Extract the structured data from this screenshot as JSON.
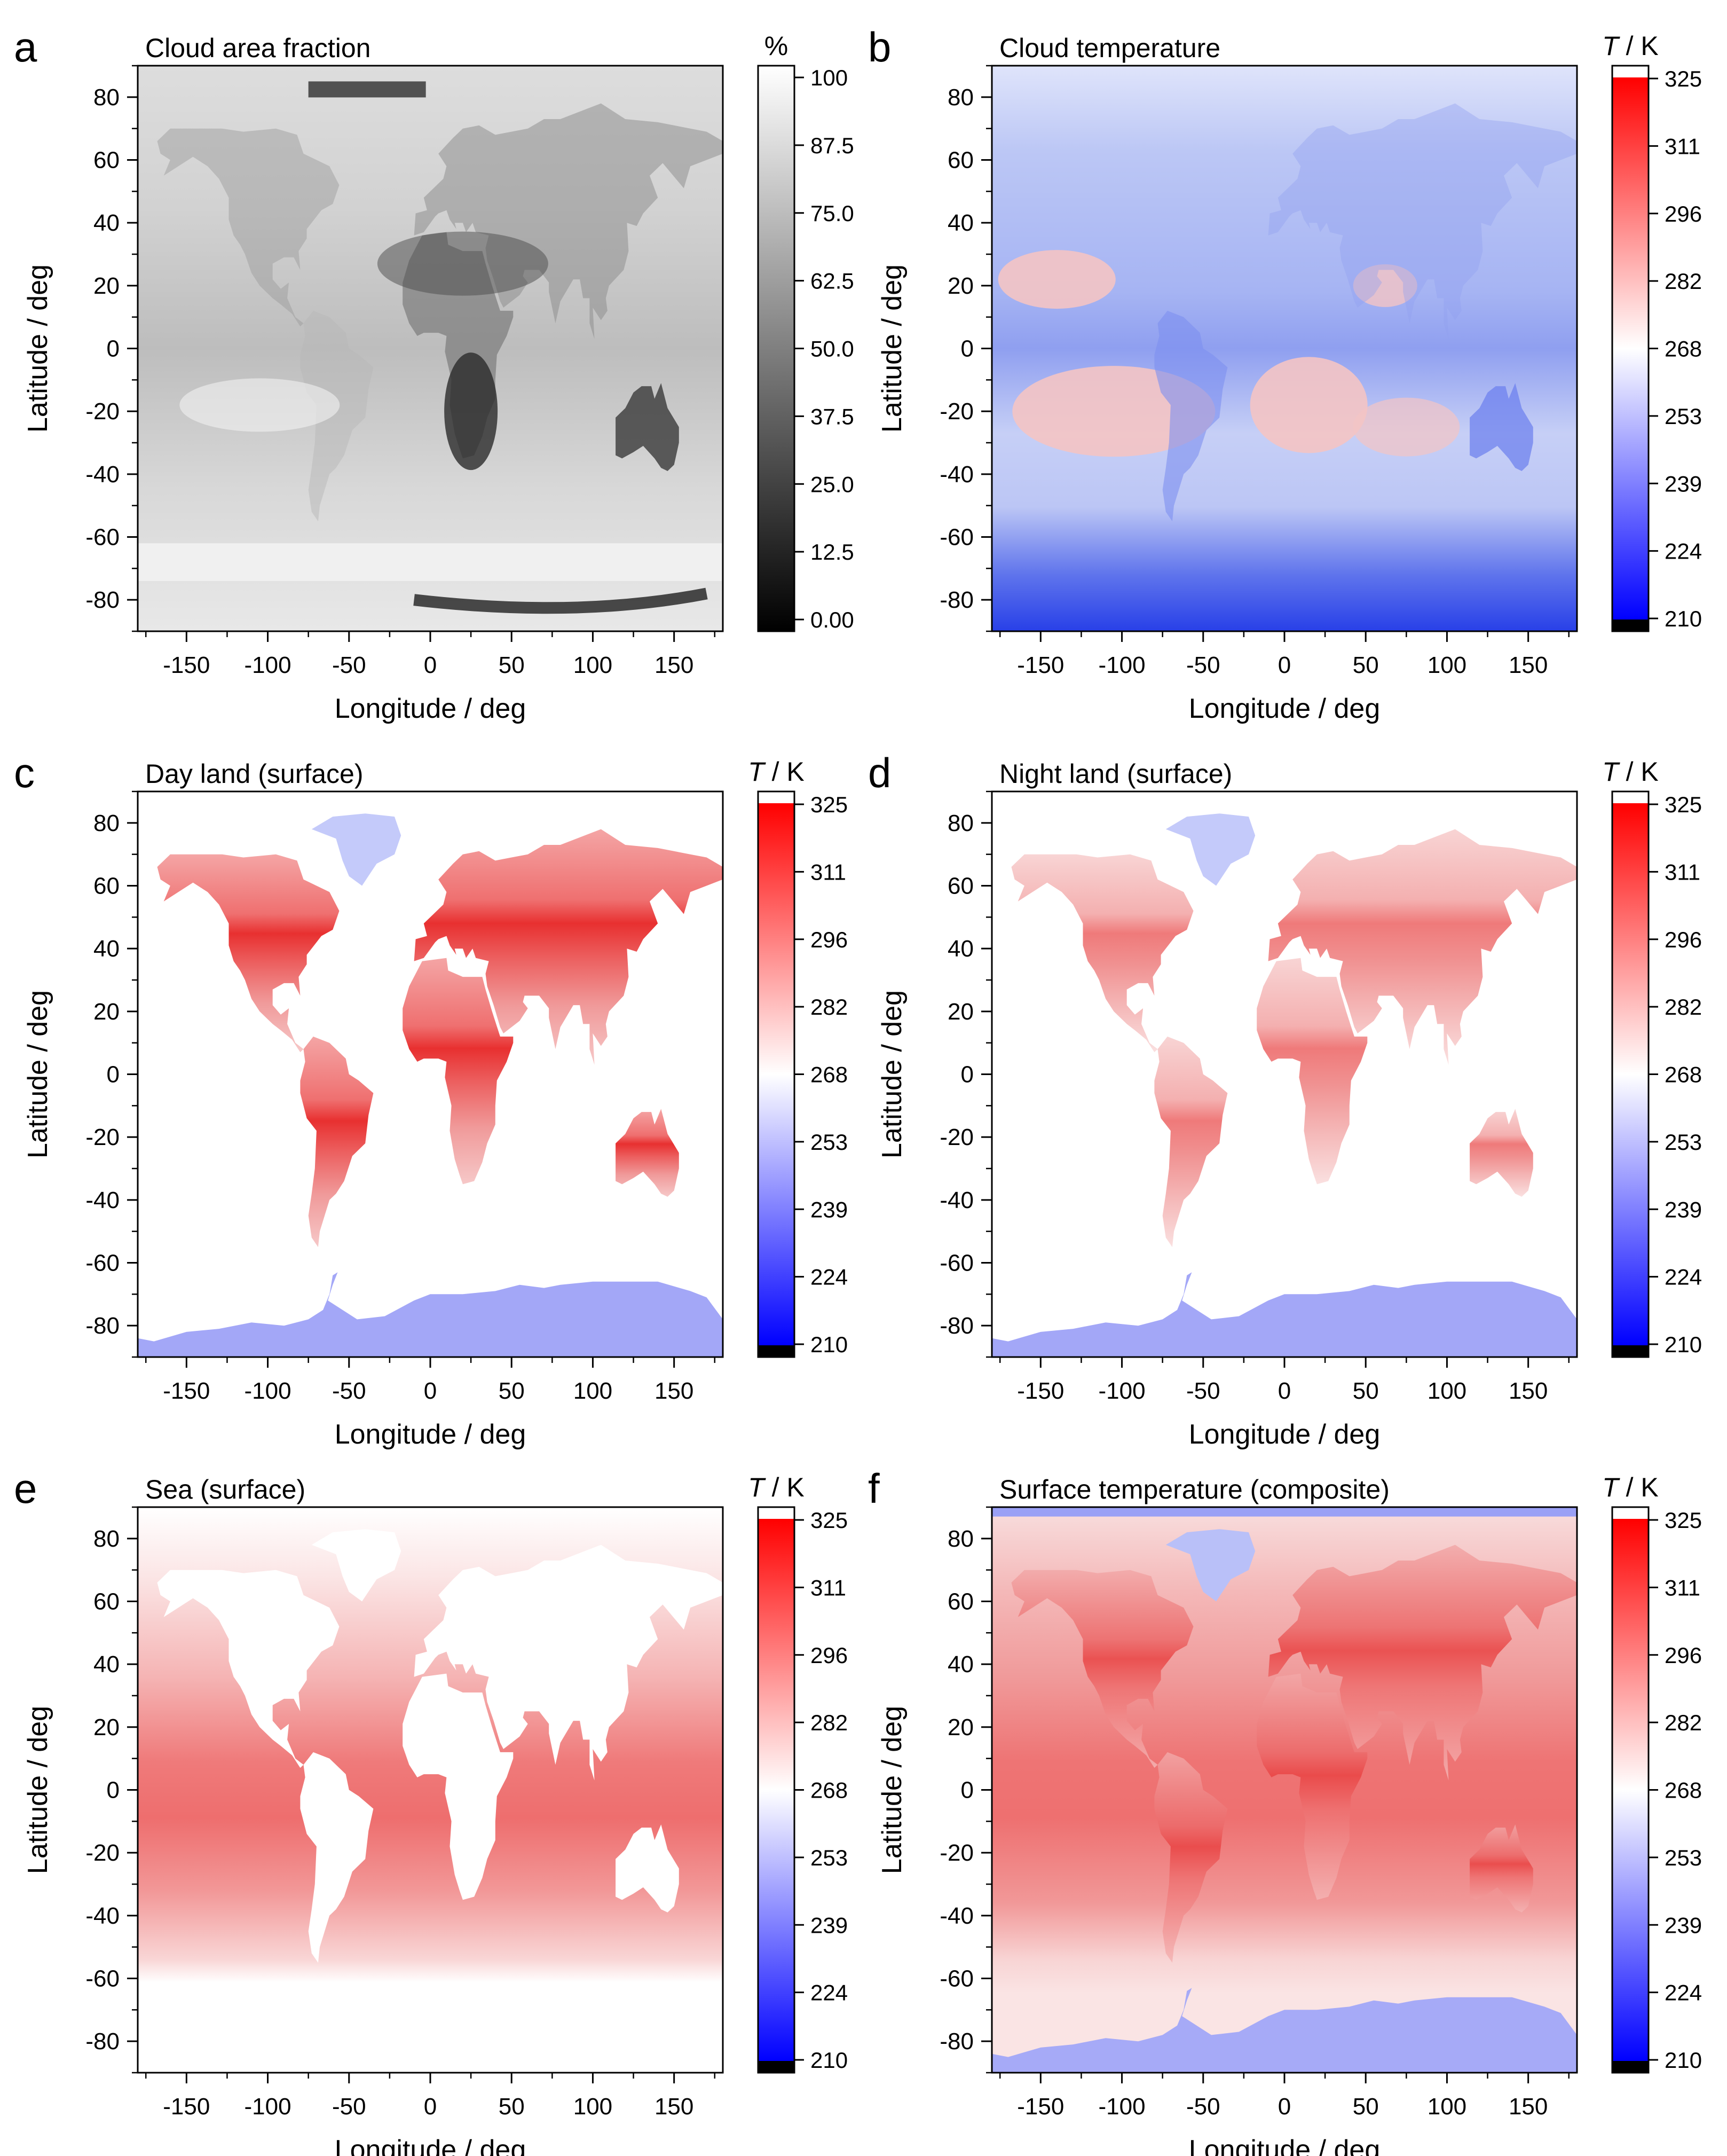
{
  "figure": {
    "palette": {
      "cloud_fraction": [
        "#000000",
        "#ffffff"
      ],
      "temperature": [
        "#000000",
        "#0000ff",
        "#ffffff",
        "#ff0000",
        "#ffffff"
      ]
    },
    "panels": [
      {
        "letter": "a",
        "title": "Cloud area fraction",
        "xlabel": "Longitude / deg",
        "ylabel": "Latitude / deg",
        "colorbar": {
          "unit_prefix": "",
          "unit": "%",
          "ticks": [
            "100",
            "87.5",
            "75.0",
            "62.5",
            "50.0",
            "37.5",
            "25.0",
            "12.5",
            "0.00"
          ],
          "palette": "cloud_fraction"
        },
        "map_style": "cloud"
      },
      {
        "letter": "b",
        "title": "Cloud temperature",
        "xlabel": "Longitude / deg",
        "ylabel": "Latitude / deg",
        "colorbar": {
          "unit_prefix": "T",
          "unit": " / K",
          "ticks": [
            "325",
            "311",
            "296",
            "282",
            "268",
            "253",
            "239",
            "224",
            "210"
          ],
          "palette": "temperature"
        },
        "map_style": "cloudtemp"
      },
      {
        "letter": "c",
        "title": "Day land (surface)",
        "xlabel": "Longitude / deg",
        "ylabel": "Latitude / deg",
        "colorbar": {
          "unit_prefix": "T",
          "unit": " / K",
          "ticks": [
            "325",
            "311",
            "296",
            "282",
            "268",
            "253",
            "239",
            "224",
            "210"
          ],
          "palette": "temperature"
        },
        "map_style": "dayland"
      },
      {
        "letter": "d",
        "title": "Night land (surface)",
        "xlabel": "Longitude / deg",
        "ylabel": "Latitude / deg",
        "colorbar": {
          "unit_prefix": "T",
          "unit": " / K",
          "ticks": [
            "325",
            "311",
            "296",
            "282",
            "268",
            "253",
            "239",
            "224",
            "210"
          ],
          "palette": "temperature"
        },
        "map_style": "nightland"
      },
      {
        "letter": "e",
        "title": "Sea (surface)",
        "xlabel": "Longitude / deg",
        "ylabel": "Latitude / deg",
        "colorbar": {
          "unit_prefix": "T",
          "unit": " / K",
          "ticks": [
            "325",
            "311",
            "296",
            "282",
            "268",
            "253",
            "239",
            "224",
            "210"
          ],
          "palette": "temperature"
        },
        "map_style": "sea"
      },
      {
        "letter": "f",
        "title": "Surface temperature (composite)",
        "xlabel": "Longitude / deg",
        "ylabel": "Latitude / deg",
        "colorbar": {
          "unit_prefix": "T",
          "unit": " / K",
          "ticks": [
            "325",
            "311",
            "296",
            "282",
            "268",
            "253",
            "239",
            "224",
            "210"
          ],
          "palette": "temperature"
        },
        "map_style": "composite"
      }
    ]
  },
  "chart_data": [
    {
      "type": "heatmap",
      "title": "Cloud area fraction",
      "xlabel": "Longitude / deg",
      "ylabel": "Latitude / deg",
      "x_ticks": [
        -150,
        -100,
        -50,
        0,
        50,
        100,
        150
      ],
      "y_ticks": [
        80,
        60,
        40,
        20,
        0,
        -20,
        -40,
        -60,
        -80
      ],
      "xlim": [
        -180,
        180
      ],
      "ylim": [
        -90,
        90
      ],
      "colorbar_label": "%",
      "colorbar_range": [
        0,
        100
      ],
      "colorbar_ticks": [
        100,
        87.5,
        75.0,
        62.5,
        50.0,
        37.5,
        25.0,
        12.5,
        0.0
      ]
    },
    {
      "type": "heatmap",
      "title": "Cloud temperature",
      "xlabel": "Longitude / deg",
      "ylabel": "Latitude / deg",
      "x_ticks": [
        -150,
        -100,
        -50,
        0,
        50,
        100,
        150
      ],
      "y_ticks": [
        80,
        60,
        40,
        20,
        0,
        -20,
        -40,
        -60,
        -80
      ],
      "xlim": [
        -180,
        180
      ],
      "ylim": [
        -90,
        90
      ],
      "colorbar_label": "T / K",
      "colorbar_range": [
        210,
        325
      ],
      "colorbar_ticks": [
        325,
        311,
        296,
        282,
        268,
        253,
        239,
        224,
        210
      ]
    },
    {
      "type": "heatmap",
      "title": "Day land (surface)",
      "xlabel": "Longitude / deg",
      "ylabel": "Latitude / deg",
      "x_ticks": [
        -150,
        -100,
        -50,
        0,
        50,
        100,
        150
      ],
      "y_ticks": [
        80,
        60,
        40,
        20,
        0,
        -20,
        -40,
        -60,
        -80
      ],
      "xlim": [
        -180,
        180
      ],
      "ylim": [
        -90,
        90
      ],
      "colorbar_label": "T / K",
      "colorbar_range": [
        210,
        325
      ],
      "colorbar_ticks": [
        325,
        311,
        296,
        282,
        268,
        253,
        239,
        224,
        210
      ]
    },
    {
      "type": "heatmap",
      "title": "Night land (surface)",
      "xlabel": "Longitude / deg",
      "ylabel": "Latitude / deg",
      "x_ticks": [
        -150,
        -100,
        -50,
        0,
        50,
        100,
        150
      ],
      "y_ticks": [
        80,
        60,
        40,
        20,
        0,
        -20,
        -40,
        -60,
        -80
      ],
      "xlim": [
        -180,
        180
      ],
      "ylim": [
        -90,
        90
      ],
      "colorbar_label": "T / K",
      "colorbar_range": [
        210,
        325
      ],
      "colorbar_ticks": [
        325,
        311,
        296,
        282,
        268,
        253,
        239,
        224,
        210
      ]
    },
    {
      "type": "heatmap",
      "title": "Sea (surface)",
      "xlabel": "Longitude / deg",
      "ylabel": "Latitude / deg",
      "x_ticks": [
        -150,
        -100,
        -50,
        0,
        50,
        100,
        150
      ],
      "y_ticks": [
        80,
        60,
        40,
        20,
        0,
        -20,
        -40,
        -60,
        -80
      ],
      "xlim": [
        -180,
        180
      ],
      "ylim": [
        -90,
        90
      ],
      "colorbar_label": "T / K",
      "colorbar_range": [
        210,
        325
      ],
      "colorbar_ticks": [
        325,
        311,
        296,
        282,
        268,
        253,
        239,
        224,
        210
      ]
    },
    {
      "type": "heatmap",
      "title": "Surface temperature (composite)",
      "xlabel": "Longitude / deg",
      "ylabel": "Latitude / deg",
      "x_ticks": [
        -150,
        -100,
        -50,
        0,
        50,
        100,
        150
      ],
      "y_ticks": [
        80,
        60,
        40,
        20,
        0,
        -20,
        -40,
        -60,
        -80
      ],
      "xlim": [
        -180,
        180
      ],
      "ylim": [
        -90,
        90
      ],
      "colorbar_label": "T / K",
      "colorbar_range": [
        210,
        325
      ],
      "colorbar_ticks": [
        325,
        311,
        296,
        282,
        268,
        253,
        239,
        224,
        210
      ]
    }
  ]
}
